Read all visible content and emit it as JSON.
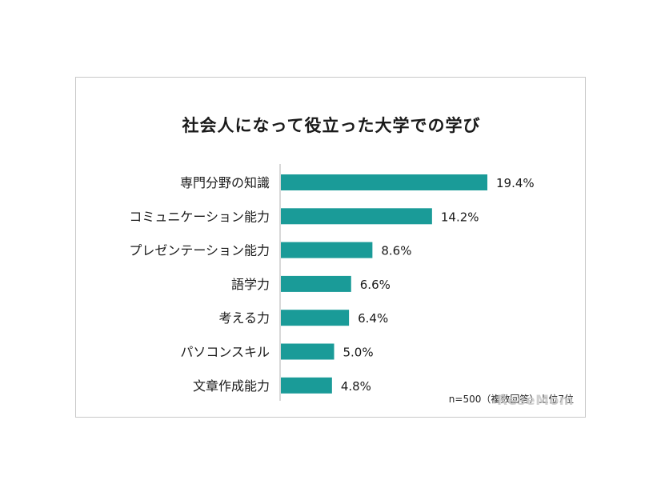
{
  "chart_data": {
    "type": "bar",
    "orientation": "horizontal",
    "title": "社会人になって役立った大学での学び",
    "categories": [
      "専門分野の知識",
      "コミュニケーション能力",
      "プレゼンテーション能力",
      "語学力",
      "考える力",
      "パソコンスキル",
      "文章作成能力"
    ],
    "values": [
      19.4,
      14.2,
      8.6,
      6.6,
      6.4,
      5.0,
      4.8
    ],
    "value_labels": [
      "19.4%",
      "14.2%",
      "8.6%",
      "6.6%",
      "6.4%",
      "5.0%",
      "4.8%"
    ],
    "xlim": [
      0,
      20
    ],
    "bar_color": "#1a9b98",
    "xlabel": "",
    "ylabel": "",
    "grid": false
  },
  "footnote": "n=500（複数回答）上位7位",
  "watermark": "ReseMom"
}
